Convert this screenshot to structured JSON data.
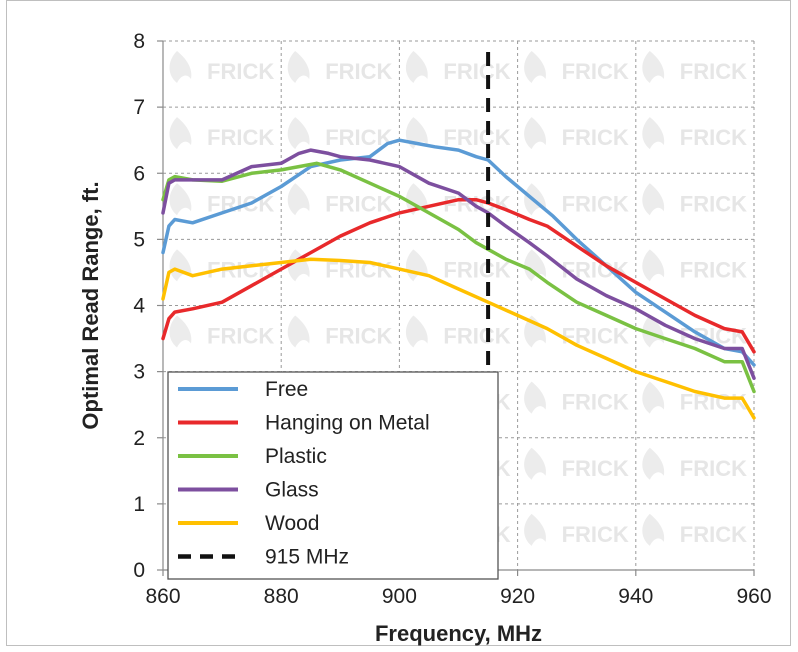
{
  "chart_data": {
    "type": "line",
    "title": "",
    "xlabel": "Frequency, MHz",
    "ylabel": "Optimal Read Range, ft.",
    "xlim": [
      860,
      960
    ],
    "ylim": [
      0,
      8
    ],
    "x_ticks": [
      860,
      880,
      900,
      920,
      940,
      960
    ],
    "y_ticks": [
      0,
      1,
      2,
      3,
      4,
      5,
      6,
      7,
      8
    ],
    "grid": true,
    "legend_position": "bottom-left",
    "watermark": "FRICK",
    "series": [
      {
        "name": "Free",
        "color": "#5b9bd5",
        "x": [
          860,
          861,
          862,
          865,
          870,
          875,
          880,
          885,
          890,
          895,
          898,
          900,
          903,
          906,
          910,
          913,
          915,
          918,
          922,
          926,
          930,
          935,
          940,
          945,
          950,
          955,
          958,
          960
        ],
        "y": [
          4.8,
          5.2,
          5.3,
          5.25,
          5.4,
          5.55,
          5.8,
          6.1,
          6.2,
          6.25,
          6.45,
          6.5,
          6.45,
          6.4,
          6.35,
          6.25,
          6.2,
          5.95,
          5.65,
          5.35,
          5.0,
          4.6,
          4.2,
          3.9,
          3.6,
          3.35,
          3.3,
          3.1
        ]
      },
      {
        "name": "Hanging on Metal",
        "color": "#e8292b",
        "x": [
          860,
          861,
          862,
          865,
          870,
          875,
          880,
          885,
          890,
          895,
          900,
          905,
          910,
          913,
          915,
          918,
          922,
          925,
          930,
          935,
          940,
          945,
          950,
          955,
          958,
          960
        ],
        "y": [
          3.5,
          3.8,
          3.9,
          3.95,
          4.05,
          4.3,
          4.55,
          4.8,
          5.05,
          5.25,
          5.4,
          5.5,
          5.6,
          5.6,
          5.55,
          5.45,
          5.3,
          5.2,
          4.9,
          4.6,
          4.35,
          4.1,
          3.85,
          3.65,
          3.6,
          3.3
        ]
      },
      {
        "name": "Plastic",
        "color": "#7ac143",
        "x": [
          860,
          861,
          862,
          865,
          870,
          875,
          880,
          883,
          886,
          890,
          895,
          900,
          905,
          910,
          913,
          915,
          918,
          922,
          925,
          930,
          935,
          940,
          945,
          950,
          955,
          958,
          960
        ],
        "y": [
          5.6,
          5.9,
          5.95,
          5.9,
          5.88,
          6.0,
          6.05,
          6.1,
          6.15,
          6.05,
          5.85,
          5.65,
          5.4,
          5.15,
          4.95,
          4.85,
          4.7,
          4.55,
          4.35,
          4.05,
          3.85,
          3.65,
          3.5,
          3.35,
          3.15,
          3.15,
          2.7
        ]
      },
      {
        "name": "Glass",
        "color": "#7d4f9f",
        "x": [
          860,
          861,
          862,
          865,
          870,
          875,
          880,
          883,
          885,
          888,
          890,
          895,
          900,
          905,
          910,
          913,
          915,
          918,
          922,
          925,
          930,
          935,
          940,
          945,
          950,
          955,
          958,
          960
        ],
        "y": [
          5.4,
          5.85,
          5.9,
          5.9,
          5.9,
          6.1,
          6.15,
          6.3,
          6.35,
          6.3,
          6.25,
          6.2,
          6.1,
          5.85,
          5.7,
          5.5,
          5.4,
          5.2,
          4.95,
          4.75,
          4.4,
          4.15,
          3.95,
          3.7,
          3.5,
          3.35,
          3.35,
          2.9
        ]
      },
      {
        "name": "Wood",
        "color": "#ffc000",
        "x": [
          860,
          861,
          862,
          865,
          870,
          875,
          880,
          885,
          890,
          895,
          900,
          905,
          910,
          915,
          920,
          925,
          930,
          935,
          940,
          945,
          950,
          955,
          958,
          960
        ],
        "y": [
          4.1,
          4.5,
          4.55,
          4.45,
          4.55,
          4.6,
          4.65,
          4.7,
          4.68,
          4.65,
          4.55,
          4.45,
          4.25,
          4.05,
          3.85,
          3.65,
          3.4,
          3.2,
          3.0,
          2.85,
          2.7,
          2.6,
          2.6,
          2.3
        ]
      },
      {
        "name": "915 MHz",
        "color": "#111111",
        "dashed": true,
        "x": [
          915,
          915
        ],
        "y": [
          3.1,
          7.9
        ]
      }
    ]
  }
}
